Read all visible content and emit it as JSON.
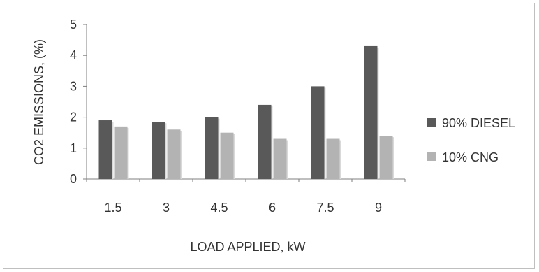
{
  "chart_data": {
    "type": "bar",
    "title": "",
    "xlabel": "LOAD APPLIED,  kW",
    "ylabel": "CO2 EMISSIONS,  (%)",
    "categories": [
      "1.5",
      "3",
      "4.5",
      "6",
      "7.5",
      "9"
    ],
    "series": [
      {
        "name": "90% DIESEL",
        "color": "#595959",
        "values": [
          1.9,
          1.85,
          2.0,
          2.4,
          3.0,
          4.3
        ]
      },
      {
        "name": "10% CNG",
        "color": "#b3b3b3",
        "values": [
          1.7,
          1.6,
          1.5,
          1.3,
          1.3,
          1.4
        ]
      }
    ],
    "ylim": [
      0,
      5
    ],
    "yticks": [
      0,
      1,
      2,
      3,
      4,
      5
    ],
    "grid": false,
    "legend_position": "right"
  }
}
